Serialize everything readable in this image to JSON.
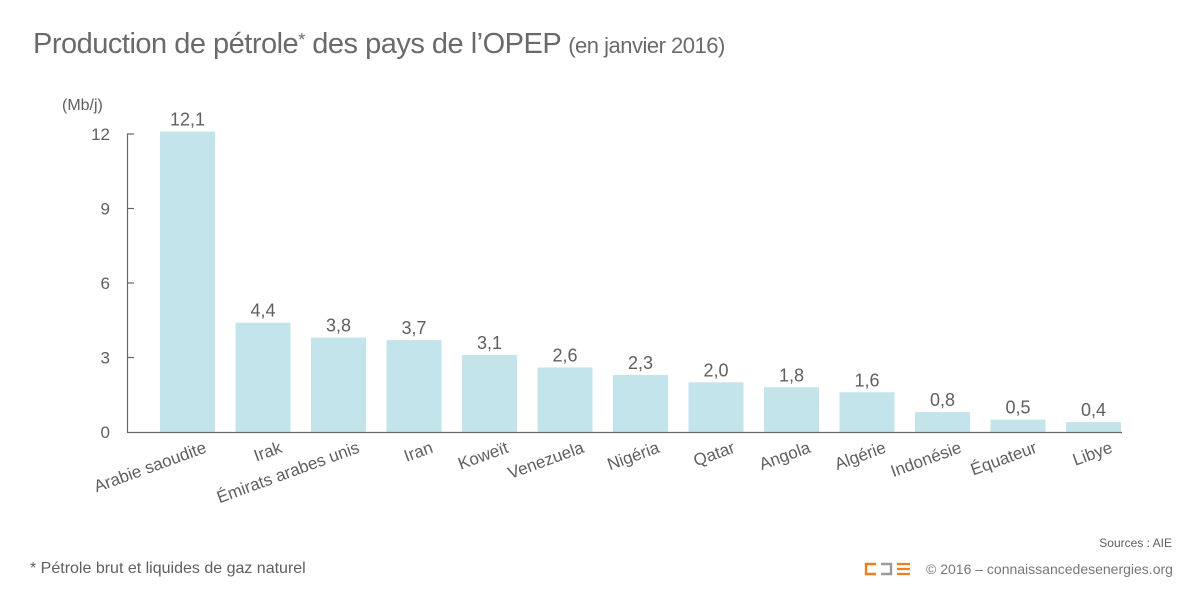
{
  "title": {
    "main": "Production de pétrole",
    "asterisk": "*",
    "rest": " des pays de l’OPEP",
    "sub": "(en janvier 2016)"
  },
  "footnote": "* Pétrole brut et liquides de gaz naturel",
  "sources": "Sources : AIE",
  "copyright": "© 2016 – connaissancedesenergies.org",
  "logo": {
    "name": "cde-logo",
    "colors": [
      "#f07f22",
      "#9a9a9a",
      "#f07f22"
    ]
  },
  "colors": {
    "bar": "#c2e4ea",
    "axis": "#666666",
    "text": "#5f5f5f"
  },
  "chart_data": {
    "type": "bar",
    "title": "Production de pétrole* des pays de l’OPEP (en janvier 2016)",
    "ylabel": "(Mb/j)",
    "xlabel": "",
    "ylim": [
      0,
      12
    ],
    "yticks": [
      0,
      3,
      6,
      9,
      12
    ],
    "grid": false,
    "categories": [
      "Arabie saoudite",
      "Irak",
      "Émirats arabes unis",
      "Iran",
      "Koweït",
      "Venezuela",
      "Nigéria",
      "Qatar",
      "Angola",
      "Algérie",
      "Indonésie",
      "Équateur",
      "Libye"
    ],
    "values": [
      12.1,
      4.4,
      3.8,
      3.7,
      3.1,
      2.6,
      2.3,
      2.0,
      1.8,
      1.6,
      0.8,
      0.5,
      0.4
    ],
    "value_labels": [
      "12,1",
      "4,4",
      "3,8",
      "3,7",
      "3,1",
      "2,6",
      "2,3",
      "2,0",
      "1,8",
      "1,6",
      "0,8",
      "0,5",
      "0,4"
    ]
  }
}
